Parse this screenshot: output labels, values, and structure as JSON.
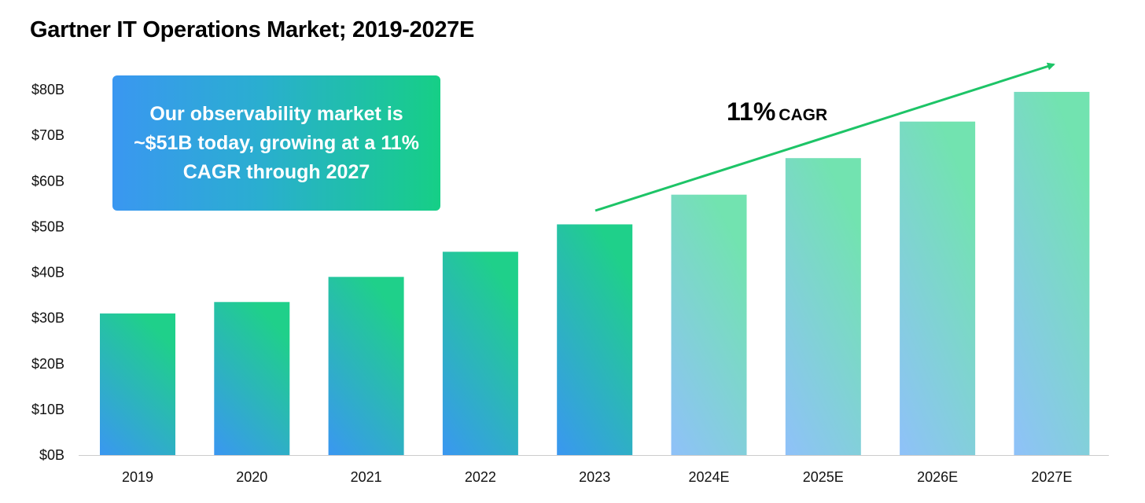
{
  "title": "Gartner IT Operations Market; 2019-2027E",
  "callout": {
    "text": "Our observability market is ~$51B today, growing at a 11% CAGR through 2027"
  },
  "cagr": {
    "percent": "11%",
    "label": "CAGR",
    "arrow_color": "#1dc467"
  },
  "colors": {
    "actual_gradient": [
      "#3a97f1",
      "#1fd08a"
    ],
    "estimate_gradient": [
      "#8fc1f9",
      "#72e3b0"
    ],
    "axis": "#cccccc"
  },
  "chart_data": {
    "type": "bar",
    "title": "Gartner IT Operations Market; 2019-2027E",
    "categories": [
      "2019",
      "2020",
      "2021",
      "2022",
      "2023",
      "2024E",
      "2025E",
      "2026E",
      "2027E"
    ],
    "series": [
      {
        "values": [
          31,
          33.5,
          39,
          44.5,
          50.5,
          57,
          65,
          73,
          79.5
        ]
      }
    ],
    "estimate_start_index": 5,
    "ylim": [
      0,
      80
    ],
    "yticks": [
      0,
      10,
      20,
      30,
      40,
      50,
      60,
      70,
      80
    ],
    "ytick_labels": [
      "$0B",
      "$10B",
      "$20B",
      "$30B",
      "$40B",
      "$50B",
      "$60B",
      "$70B",
      "$80B"
    ],
    "xlabel": "",
    "ylabel": "",
    "grid": false,
    "legend": "none"
  }
}
